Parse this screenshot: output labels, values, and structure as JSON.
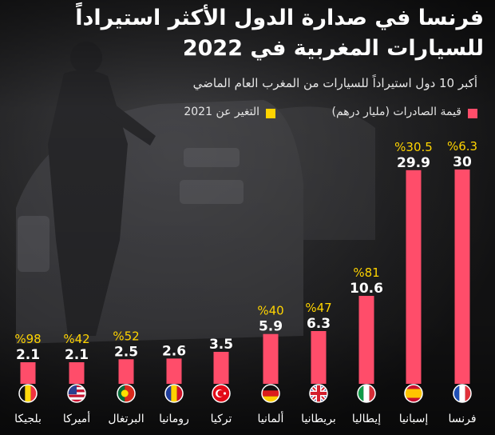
{
  "title_line1": "فرنسا في صدارة الدول الأكثر استيراداً",
  "title_line2": "للسيارات المغربية في 2022",
  "subtitle": "أكبر 10 دول استيراداً للسيارات من المغرب العام الماضي",
  "legend": {
    "exports_label": "قيمة الصادرات (مليار درهم)",
    "change_label": "التغير عن 2021"
  },
  "colors": {
    "bar": "#ff4d6a",
    "change": "#ffd400",
    "background": "#1c1c1e",
    "text": "#ffffff"
  },
  "chart_data": {
    "type": "bar",
    "categories": [
      "فرنسا",
      "إسبانيا",
      "إيطاليا",
      "بريطانيا",
      "ألمانيا",
      "تركيا",
      "رومانيا",
      "البرتغال",
      "أميركا",
      "بلجيكا"
    ],
    "values": [
      30,
      29.9,
      10.6,
      6.3,
      5.9,
      3.5,
      2.6,
      2.5,
      2.1,
      2.1
    ],
    "value_labels": [
      "30",
      "29.9",
      "10.6",
      "6.3",
      "5.9",
      "3.5",
      "2.6",
      "2.5",
      "2.1",
      "2.1"
    ],
    "change_labels": [
      "%6.3",
      "%30.5",
      "%81",
      "%47",
      "%40",
      "",
      "",
      "%52",
      "%42",
      "%98"
    ],
    "flags": [
      "france-flag-icon",
      "spain-flag-icon",
      "italy-flag-icon",
      "uk-flag-icon",
      "germany-flag-icon",
      "turkey-flag-icon",
      "romania-flag-icon",
      "portugal-flag-icon",
      "usa-flag-icon",
      "belgium-flag-icon"
    ],
    "ylim": [
      0,
      30
    ],
    "legend_position": "top-right"
  }
}
